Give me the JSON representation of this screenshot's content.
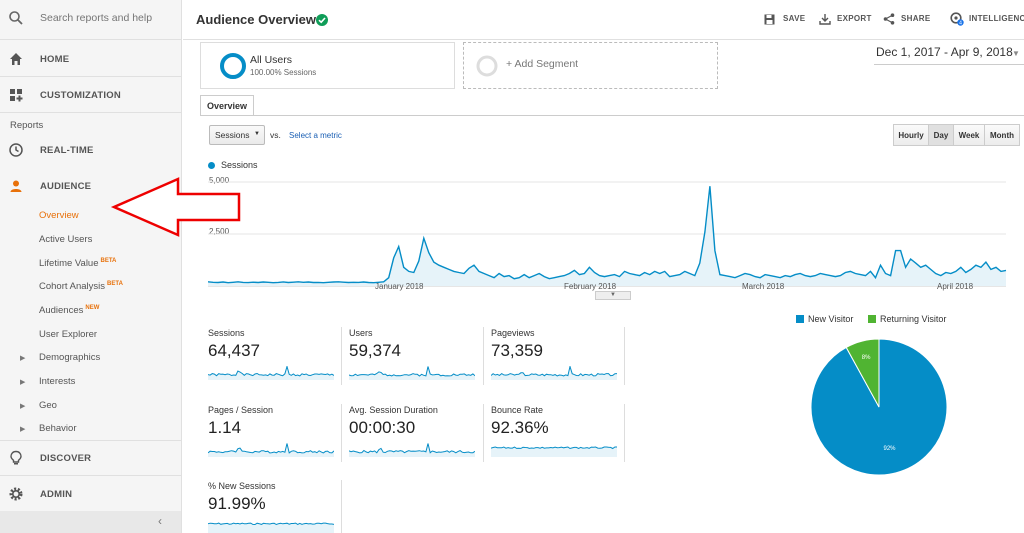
{
  "search": {
    "placeholder": "Search reports and help"
  },
  "sidebar": {
    "home": "HOME",
    "customization": "CUSTOMIZATION",
    "reports_label": "Reports",
    "realtime": "REAL-TIME",
    "audience": "AUDIENCE",
    "sub_items": [
      {
        "label": "Overview"
      },
      {
        "label": "Active Users"
      },
      {
        "label": "Lifetime Value",
        "badge": "BETA"
      },
      {
        "label": "Cohort Analysis",
        "badge": "BETA"
      },
      {
        "label": "Audiences",
        "badge": "NEW"
      },
      {
        "label": "User Explorer"
      },
      {
        "label": "Demographics"
      },
      {
        "label": "Interests"
      },
      {
        "label": "Geo"
      },
      {
        "label": "Behavior"
      }
    ],
    "discover": "DISCOVER",
    "admin": "ADMIN"
  },
  "header": {
    "title": "Audience Overview",
    "save": "SAVE",
    "export": "EXPORT",
    "share": "SHARE",
    "intelligence": "INTELLIGENCE"
  },
  "segments": {
    "all_users": "All Users",
    "all_users_sub": "100.00% Sessions",
    "add_segment": "+ Add Segment"
  },
  "date_range": "Dec 1, 2017 - Apr 9, 2018",
  "tabs": {
    "overview": "Overview"
  },
  "controls": {
    "metric": "Sessions",
    "vs": "vs.",
    "select_metric": "Select a metric",
    "granularity": [
      "Hourly",
      "Day",
      "Week",
      "Month"
    ],
    "active_granularity": "Day"
  },
  "colors": {
    "accent": "#058dc7",
    "returning": "#50b432",
    "active_nav": "#e8710a"
  },
  "chart_data": [
    {
      "type": "area",
      "series": [
        {
          "name": "Sessions",
          "values": [
            200,
            180,
            170,
            190,
            160,
            180,
            200,
            175,
            165,
            185,
            170,
            190,
            180,
            160,
            175,
            195,
            170,
            185,
            200,
            180,
            190,
            170,
            175,
            160,
            180,
            190,
            200,
            185,
            170,
            180,
            175,
            190,
            170,
            160,
            180,
            200,
            400,
            1350,
            1900,
            900,
            700,
            650,
            1200,
            2300,
            1600,
            1150,
            1000,
            900,
            800,
            700,
            650,
            600,
            850,
            1000,
            700,
            600,
            500,
            400,
            600,
            450,
            500,
            350,
            400,
            550,
            400,
            500,
            600,
            450,
            350,
            400,
            450,
            500,
            600,
            750,
            550,
            600,
            900,
            650,
            500,
            450,
            500,
            550,
            450,
            700,
            600,
            550,
            500,
            650,
            550,
            700,
            600,
            700,
            450,
            500,
            550,
            700,
            600,
            500,
            1100,
            2600,
            4800,
            1700,
            550,
            500,
            450,
            400,
            500,
            600,
            550,
            450,
            400,
            550,
            500,
            450,
            400,
            500,
            450,
            550,
            600,
            500,
            450,
            500,
            600,
            550,
            500,
            450,
            500,
            650,
            700,
            600,
            550,
            500,
            700,
            400,
            1000,
            600,
            500,
            1700,
            1700,
            900,
            1300,
            1100,
            900,
            1000,
            800,
            600,
            500,
            650,
            600,
            700,
            900,
            650,
            800,
            1000,
            900,
            1150,
            800,
            900,
            700,
            750
          ]
        }
      ],
      "ylim": [
        0,
        5000
      ],
      "yticks": [
        "5,000",
        "2,500"
      ],
      "xticks": [
        "January 2018",
        "February 2018",
        "March 2018",
        "April 2018"
      ],
      "legend": "top-left"
    },
    {
      "type": "pie",
      "categories": [
        "New Visitor",
        "Returning Visitor"
      ],
      "values": [
        92,
        8
      ],
      "labels": [
        "92%",
        "8%"
      ],
      "legend": "top"
    }
  ],
  "metrics": [
    {
      "label": "Sessions",
      "value": "64,437"
    },
    {
      "label": "Users",
      "value": "59,374"
    },
    {
      "label": "Pageviews",
      "value": "73,359"
    },
    {
      "label": "Pages / Session",
      "value": "1.14"
    },
    {
      "label": "Avg. Session Duration",
      "value": "00:00:30"
    },
    {
      "label": "Bounce Rate",
      "value": "92.36%"
    },
    {
      "label": "% New Sessions",
      "value": "91.99%"
    }
  ]
}
